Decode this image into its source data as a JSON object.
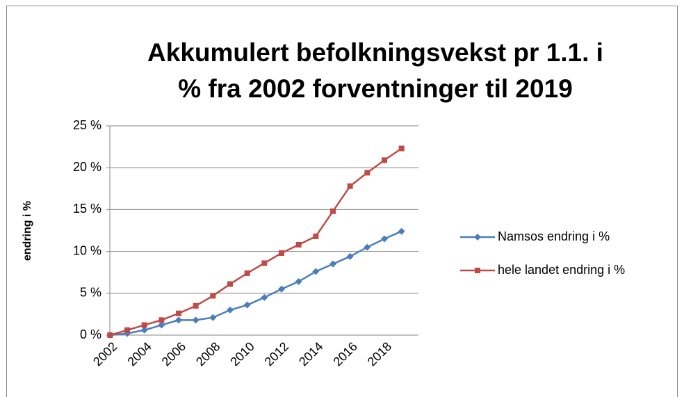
{
  "chart_data": {
    "type": "line",
    "title": [
      "Akkumulert befolkningsvekst pr 1.1. i",
      "% fra 2002 forventninger til 2019"
    ],
    "y_label": "endring i %",
    "categories": [
      "2002",
      null,
      "2004",
      null,
      "2006",
      null,
      "2008",
      null,
      "2010",
      null,
      "2012",
      null,
      "2014",
      null,
      "2016",
      null,
      "2018",
      null
    ],
    "series": [
      {
        "name": "Namsos endring i %",
        "color": "#4a7ebb",
        "marker": "diamond",
        "values": [
          0,
          0.2,
          0.6,
          1.2,
          1.8,
          1.8,
          2.1,
          3.0,
          3.6,
          4.5,
          5.5,
          6.4,
          7.6,
          8.5,
          9.4,
          10.5,
          11.5,
          12.4
        ]
      },
      {
        "name": "hele landet endring i %",
        "color": "#be4b48",
        "marker": "square",
        "values": [
          0,
          0.6,
          1.2,
          1.8,
          2.6,
          3.5,
          4.7,
          6.1,
          7.4,
          8.6,
          9.8,
          10.8,
          11.8,
          14.8,
          17.8,
          19.4,
          20.9,
          22.3
        ]
      }
    ],
    "ylim": [
      0,
      25
    ],
    "yticks": [
      {
        "value": 0,
        "label": "0 %"
      },
      {
        "value": 5,
        "label": "5 %"
      },
      {
        "value": 10,
        "label": "10 %"
      },
      {
        "value": 15,
        "label": "15 %"
      },
      {
        "value": 20,
        "label": "20 %"
      },
      {
        "value": 25,
        "label": "25 %"
      }
    ],
    "grid": true,
    "legend": "right"
  }
}
